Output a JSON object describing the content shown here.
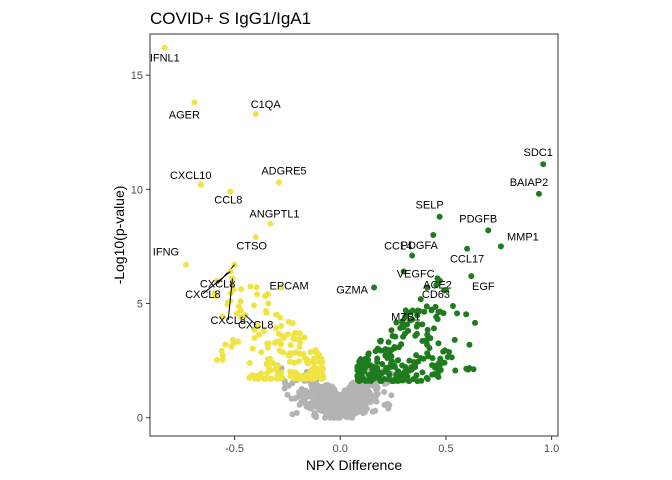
{
  "chart_data": {
    "type": "scatter",
    "title": "COVID+ S IgG1/IgA1",
    "xlabel": "NPX Difference",
    "ylabel": "-Log10(p-value)",
    "xlim": [
      -0.9,
      1.03
    ],
    "ylim": [
      -0.8,
      16.8
    ],
    "xticks": [
      -0.5,
      0.0,
      0.5,
      1.0
    ],
    "xtick_labels": [
      "-0.5",
      "0.0",
      "0.5",
      "1.0"
    ],
    "yticks": [
      0,
      5,
      10,
      15
    ],
    "ytick_labels": [
      "0",
      "5",
      "10",
      "15"
    ],
    "grid": false,
    "legend": "none",
    "colors": {
      "down": "#f0e442",
      "up": "#1e7b1e",
      "ns": "#b3b3b3",
      "panel_border": "#333333"
    },
    "labeled_points": [
      {
        "label": "IFNL1",
        "x": -0.83,
        "y": 16.2,
        "group": "down"
      },
      {
        "label": "AGER",
        "x": -0.69,
        "y": 13.8,
        "group": "down"
      },
      {
        "label": "C1QA",
        "x": -0.4,
        "y": 13.3,
        "group": "down"
      },
      {
        "label": "CXCL10",
        "x": -0.66,
        "y": 10.2,
        "group": "down"
      },
      {
        "label": "ADGRE5",
        "x": -0.29,
        "y": 10.3,
        "group": "down"
      },
      {
        "label": "CCL8",
        "x": -0.52,
        "y": 9.9,
        "group": "down"
      },
      {
        "label": "ANGPTL1",
        "x": -0.33,
        "y": 8.5,
        "group": "down"
      },
      {
        "label": "CTSO",
        "x": -0.4,
        "y": 7.9,
        "group": "down"
      },
      {
        "label": "IFNG",
        "x": -0.73,
        "y": 6.7,
        "group": "down"
      },
      {
        "label": "CXCL8",
        "x": -0.5,
        "y": 6.7,
        "group": "down"
      },
      {
        "label": "CXCL8",
        "x": -0.52,
        "y": 6.4,
        "group": "down"
      },
      {
        "label": "CXCL8",
        "x": -0.51,
        "y": 6.1,
        "group": "down"
      },
      {
        "label": "EPCAM",
        "x": -0.28,
        "y": 5.7,
        "group": "down"
      },
      {
        "label": "CXCL8",
        "x": -0.45,
        "y": 4.5,
        "group": "down"
      },
      {
        "label": "SDC1",
        "x": 0.96,
        "y": 11.1,
        "group": "up"
      },
      {
        "label": "BAIAP2",
        "x": 0.94,
        "y": 9.8,
        "group": "up"
      },
      {
        "label": "SELP",
        "x": 0.47,
        "y": 8.8,
        "group": "up"
      },
      {
        "label": "PDGFB",
        "x": 0.7,
        "y": 8.2,
        "group": "up"
      },
      {
        "label": "PDGFA",
        "x": 0.44,
        "y": 8.0,
        "group": "up"
      },
      {
        "label": "MMP1",
        "x": 0.76,
        "y": 7.5,
        "group": "up"
      },
      {
        "label": "CCL4",
        "x": 0.34,
        "y": 7.1,
        "group": "up"
      },
      {
        "label": "CCL17",
        "x": 0.6,
        "y": 7.4,
        "group": "up"
      },
      {
        "label": "VEGFC",
        "x": 0.3,
        "y": 6.4,
        "group": "up"
      },
      {
        "label": "ACE2",
        "x": 0.46,
        "y": 6.1,
        "group": "up"
      },
      {
        "label": "EGF",
        "x": 0.62,
        "y": 6.2,
        "group": "up"
      },
      {
        "label": "CD63",
        "x": 0.5,
        "y": 5.6,
        "group": "up"
      },
      {
        "label": "GZMA",
        "x": 0.16,
        "y": 5.7,
        "group": "up"
      },
      {
        "label": "MZB1",
        "x": 0.31,
        "y": 4.7,
        "group": "up"
      }
    ]
  }
}
